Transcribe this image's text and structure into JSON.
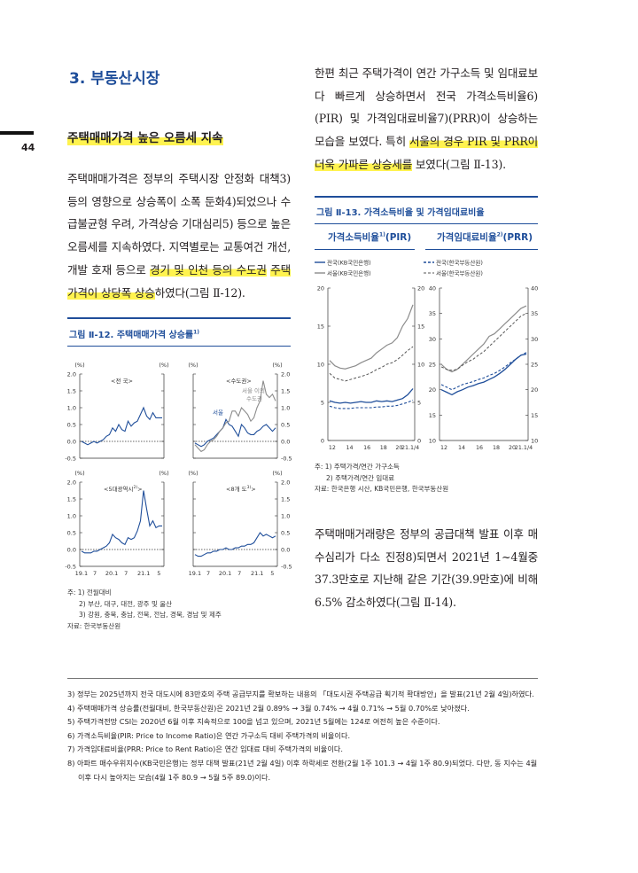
{
  "page": {
    "number": "44",
    "section_title": "3. 부동산시장",
    "subheading": "주택매매가격 높은 오름세 지속"
  },
  "left_text": {
    "paragraph_1_normal": "주택매매가격은 정부의 주택시장 안정화 대책3) 등의 영향으로 상승폭이 소폭 둔화4)되었으나 수급불균형 우려, 가격상승 기대심리5) 등으로 높은 오름세를 지속하였다. 지역별로는 교통여건 개선, 개발 호재 등으로 ",
    "paragraph_1_highlight_a": "경기 및 인천 등의 수도권",
    "paragraph_1_highlight_b": "주택가격이 상당폭 상승",
    "paragraph_1_end": "하였다(그림 Ⅱ-12)."
  },
  "right_text": {
    "paragraph_1_normal": "한편 최근 주택가격이 연간 가구소득 및 임대료보다 빠르게 상승하면서 전국 가격소득비율6) (PIR) 및 가격임대료비율7)(PRR)이 상승하는 모습을 보였다. 특히 ",
    "paragraph_1_highlight": "서울의 경우 PIR 및 PRR이 더욱 가파른 상승세를",
    "paragraph_1_end": " 보였다(그림 Ⅱ-13).",
    "paragraph_2": "주택매매거래량은 정부의 공급대책 발표 이후 매수심리가 다소 진정8)되면서 2021년 1~4월중 37.3만호로 지난해 같은 기간(39.9만호)에 비해 6.5% 감소하였다(그림 Ⅱ-14)."
  },
  "figure_12": {
    "title": "그림 Ⅱ-12. 주택매매가격 상승률",
    "title_sup": "1)",
    "notes": [
      "주: 1) 전월대비",
      "2) 부산, 대구, 대전, 광주 및 울산",
      "3) 강원, 충북, 충남, 전북, 전남, 경북, 경남 및 제주",
      "자료: 한국부동산원"
    ],
    "unit": "(%)",
    "y_ticks": [
      "2.0",
      "1.5",
      "1.0",
      "0.5",
      "0.0",
      "-0.5"
    ],
    "x_ticks": [
      "19.1",
      "7",
      "20.1",
      "7",
      "21.1",
      "5"
    ],
    "panel_labels": {
      "national": "<전 국>",
      "capital": "<수도권>",
      "metro5": "<5대광역시",
      "metro5_sup": "2)",
      "provinces8": "<8개 도",
      "provinces8_sup": "3)",
      "seoul": "서울",
      "outside_seoul_line1": "서울 이외",
      "outside_seoul_line2": "수도권"
    }
  },
  "figure_13": {
    "title": "그림 Ⅱ-13. 가격소득비율 및 가격임대료비율",
    "left_header": "가격소득비율",
    "left_header_sup": "1)",
    "left_header_suffix": "(PIR)",
    "right_header": "가격임대료비율",
    "right_header_sup": "2)",
    "right_header_suffix": "(PRR)",
    "legend_left": [
      "전국(KB국민은행)",
      "서울(KB국민은행)"
    ],
    "legend_right": [
      "전국(한국부동산원)",
      "서울(한국부동산원)"
    ],
    "pir_y_ticks": [
      "20",
      "15",
      "10",
      "5",
      "0"
    ],
    "prr_y_ticks": [
      "40",
      "35",
      "30",
      "25",
      "20",
      "15",
      "10"
    ],
    "x_ticks": [
      "12",
      "14",
      "16",
      "18",
      "20",
      "21.1/4"
    ],
    "notes": [
      "주: 1) 주택가격/연간 가구소득",
      "2) 주택가격/연간 임대료",
      "자료: 한국은행 시산, KB국민은행, 한국부동산원"
    ]
  },
  "footnotes": [
    "3) 정부는 2025년까지 전국 대도시에 83만호의 주택 공급부지를 확보하는 내용의 「대도시권 주택공급 획기적 확대방안」을 발표(21년 2월 4일)하였다.",
    "4) 주택매매가격 상승률(전월대비, 한국부동산원)은 2021년 2월 0.89% → 3월 0.74% → 4월 0.71% → 5월 0.70%로 낮아졌다.",
    "5) 주택가격전망 CSI는 2020년 6월 이후 지속적으로 100을 넘고 있으며, 2021년 5월에는 124로 여전히 높은 수준이다.",
    "6) 가격소득비율(PIR: Price to Income Ratio)은 연간 가구소득 대비 주택가격의 비율이다.",
    "7) 가격임대료비율(PRR: Price to Rent Ratio)은 연간 임대료 대비 주택가격의 비율이다.",
    "8) 아파트 매수우위지수(KB국민은행)는 정부 대책 발표(21년 2월 4일) 이후 하락세로 전환(2월 1주 101.3 → 4월 1주 80.9)되었다. 다만, 동 지수는 4월 이후 다시 높아지는 모습(4월 1주 80.9 → 5월 5주 89.0)이다."
  ],
  "chart_data": [
    {
      "type": "line",
      "panel": "<전 국>",
      "x_range": [
        "19.1",
        "21.5"
      ],
      "ylim": [
        -0.5,
        2.0
      ],
      "series": [
        {
          "values": [
            0.0,
            -0.05,
            -0.1,
            -0.05,
            0.0,
            -0.05,
            0.0,
            0.05,
            0.15,
            0.2,
            0.4,
            0.3,
            0.5,
            0.35,
            0.3,
            0.6,
            0.45,
            0.55,
            0.6,
            0.8,
            1.0,
            0.75,
            0.65,
            0.85,
            0.7,
            0.7,
            0.7
          ]
        }
      ]
    },
    {
      "type": "line",
      "panel": "<수도권>",
      "x_range": [
        "19.1",
        "21.5"
      ],
      "ylim": [
        -0.5,
        2.0
      ],
      "series": [
        {
          "name": "서울",
          "values": [
            -0.05,
            -0.1,
            -0.15,
            -0.1,
            0.0,
            0.05,
            0.1,
            0.2,
            0.3,
            0.4,
            0.65,
            0.5,
            0.45,
            0.3,
            0.15,
            0.5,
            0.4,
            0.25,
            0.2,
            0.2,
            0.3,
            0.35,
            0.45,
            0.5,
            0.4,
            0.3,
            0.4
          ]
        },
        {
          "name": "서울 이외 수도권",
          "values": [
            -0.1,
            -0.2,
            -0.3,
            -0.25,
            -0.1,
            0.0,
            0.05,
            0.15,
            0.3,
            0.4,
            0.55,
            0.6,
            0.9,
            0.9,
            0.75,
            1.0,
            0.9,
            0.8,
            0.6,
            0.7,
            1.0,
            1.2,
            1.8,
            1.4,
            1.3,
            1.4,
            1.2
          ]
        }
      ]
    },
    {
      "type": "line",
      "panel": "<5대광역시>",
      "x_range": [
        "19.1",
        "21.5"
      ],
      "ylim": [
        -0.5,
        2.0
      ],
      "series": [
        {
          "values": [
            -0.05,
            -0.1,
            -0.1,
            -0.1,
            -0.05,
            -0.05,
            0.0,
            0.05,
            0.1,
            0.2,
            0.45,
            0.35,
            0.3,
            0.2,
            0.15,
            0.35,
            0.3,
            0.35,
            0.55,
            0.85,
            1.75,
            1.2,
            0.7,
            0.85,
            0.65,
            0.7,
            0.7
          ]
        }
      ]
    },
    {
      "type": "line",
      "panel": "<8개 도>",
      "x_range": [
        "19.1",
        "21.5"
      ],
      "ylim": [
        -0.5,
        2.0
      ],
      "series": [
        {
          "values": [
            -0.15,
            -0.2,
            -0.2,
            -0.15,
            -0.1,
            -0.1,
            -0.05,
            -0.05,
            0.0,
            0.0,
            0.05,
            0.0,
            0.0,
            0.05,
            0.05,
            0.1,
            0.1,
            0.15,
            0.15,
            0.2,
            0.35,
            0.5,
            0.4,
            0.45,
            0.4,
            0.35,
            0.4
          ]
        }
      ]
    },
    {
      "type": "line",
      "panel": "가격소득비율(PIR)",
      "x_range": [
        "12",
        "21.1/4"
      ],
      "ylim": [
        0,
        20
      ],
      "series": [
        {
          "name": "전국(KB국민은행)",
          "values": [
            5.2,
            5.0,
            4.9,
            5.0,
            4.9,
            5.0,
            5.1,
            5.0,
            5.0,
            5.2,
            5.1,
            5.2,
            5.1,
            5.3,
            5.5,
            6.0,
            6.8
          ]
        },
        {
          "name": "서울(KB국민은행)",
          "values": [
            10.5,
            9.8,
            9.5,
            9.4,
            9.6,
            9.8,
            10.2,
            10.5,
            10.8,
            11.5,
            12.0,
            12.5,
            12.8,
            13.5,
            15.0,
            16.0,
            17.8
          ]
        },
        {
          "name": "전국(한국부동산원)",
          "values": [
            4.5,
            4.3,
            4.2,
            4.2,
            4.2,
            4.3,
            4.3,
            4.3,
            4.3,
            4.4,
            4.4,
            4.5,
            4.5,
            4.6,
            4.8,
            5.0,
            5.3
          ]
        },
        {
          "name": "서울(한국부동산원)",
          "values": [
            8.8,
            8.2,
            8.0,
            7.8,
            8.0,
            8.2,
            8.4,
            8.6,
            8.9,
            9.3,
            9.6,
            10.0,
            10.2,
            10.6,
            11.2,
            11.8,
            12.3
          ]
        }
      ]
    },
    {
      "type": "line",
      "panel": "가격임대료비율(PRR)",
      "x_range": [
        "12",
        "21.1/4"
      ],
      "ylim": [
        10,
        40
      ],
      "series": [
        {
          "name": "전국(KB국민은행)",
          "values": [
            20.0,
            19.5,
            19.0,
            19.6,
            20.0,
            20.5,
            20.8,
            21.2,
            21.5,
            22.0,
            22.5,
            23.2,
            24.0,
            25.0,
            26.0,
            26.8,
            27.0
          ]
        },
        {
          "name": "서울(KB국민은행)",
          "values": [
            25.0,
            24.0,
            23.5,
            24.0,
            25.0,
            26.0,
            27.0,
            28.0,
            29.0,
            30.5,
            31.0,
            32.0,
            33.0,
            34.0,
            35.0,
            36.0,
            36.5
          ]
        },
        {
          "name": "전국(한국부동산원)",
          "values": [
            21.0,
            20.5,
            20.0,
            20.5,
            21.0,
            21.3,
            21.6,
            22.0,
            22.3,
            22.8,
            23.2,
            23.8,
            24.5,
            25.3,
            26.0,
            26.8,
            27.3
          ]
        },
        {
          "name": "서울(한국부동산원)",
          "values": [
            24.5,
            24.0,
            23.8,
            24.0,
            24.8,
            25.5,
            26.0,
            26.8,
            27.5,
            28.5,
            29.5,
            30.5,
            31.5,
            32.5,
            33.5,
            34.5,
            35.0
          ]
        }
      ]
    }
  ]
}
